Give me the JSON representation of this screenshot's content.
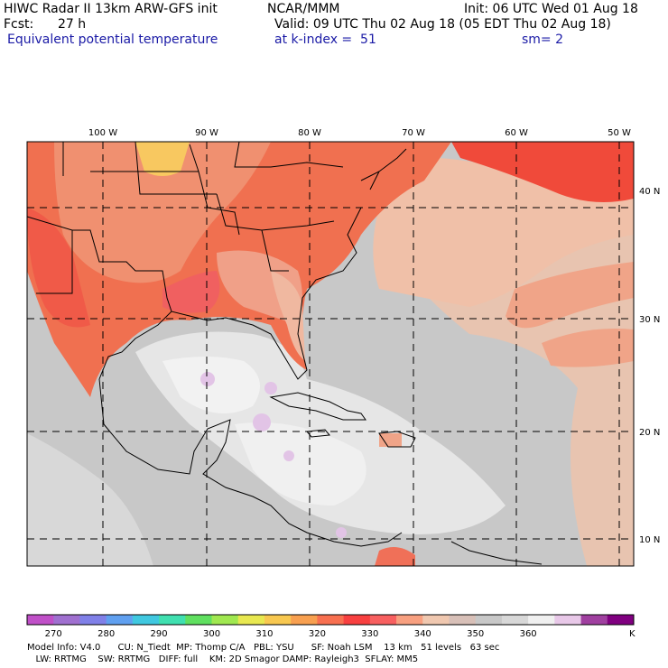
{
  "header": {
    "model": "HIWC Radar II 13km ARW-GFS init",
    "org": "NCAR/MMM",
    "init": "Init: 06 UTC Wed 01 Aug 18",
    "fcst_label": "Fcst:",
    "fcst_value": "27 h",
    "valid": "Valid: 09 UTC Thu 02 Aug 18 (05 EDT Thu 02 Aug 18)",
    "field": "Equivalent potential temperature",
    "level": "at k-index =  51",
    "smoothing": "sm= 2"
  },
  "map": {
    "lon_labels": [
      "100 W",
      "90 W",
      "80 W",
      "70 W",
      "60 W",
      "50 W"
    ],
    "lat_labels": [
      "40 N",
      "30 N",
      "20 N",
      "10 N"
    ]
  },
  "colorbar": {
    "unit": "K",
    "labels": [
      "270",
      "280",
      "290",
      "300",
      "310",
      "320",
      "330",
      "340",
      "350",
      "360"
    ],
    "colors": [
      "#c050c8",
      "#a070d0",
      "#8080e8",
      "#60a0f0",
      "#40c8e0",
      "#40e0b0",
      "#60e060",
      "#a0e850",
      "#e8e850",
      "#f8c850",
      "#f8a050",
      "#f87050",
      "#f84040",
      "#f86060",
      "#f8a080",
      "#f0c8b0",
      "#d8c0b8",
      "#c8c8c8",
      "#d8d8d8",
      "#f0f0f0",
      "#e8c8e8",
      "#a040a0",
      "#800080"
    ]
  },
  "footer": {
    "line1": "Model Info: V4.0      CU: N_Tiedt  MP: Thomp C/A   PBL: YSU      SF: Noah LSM    13 km   51 levels   63 sec",
    "line2": "   LW: RRTMG    SW: RRTMG   DIFF: full    KM: 2D Smagor DAMP: Rayleigh3  SFLAY: MM5"
  }
}
